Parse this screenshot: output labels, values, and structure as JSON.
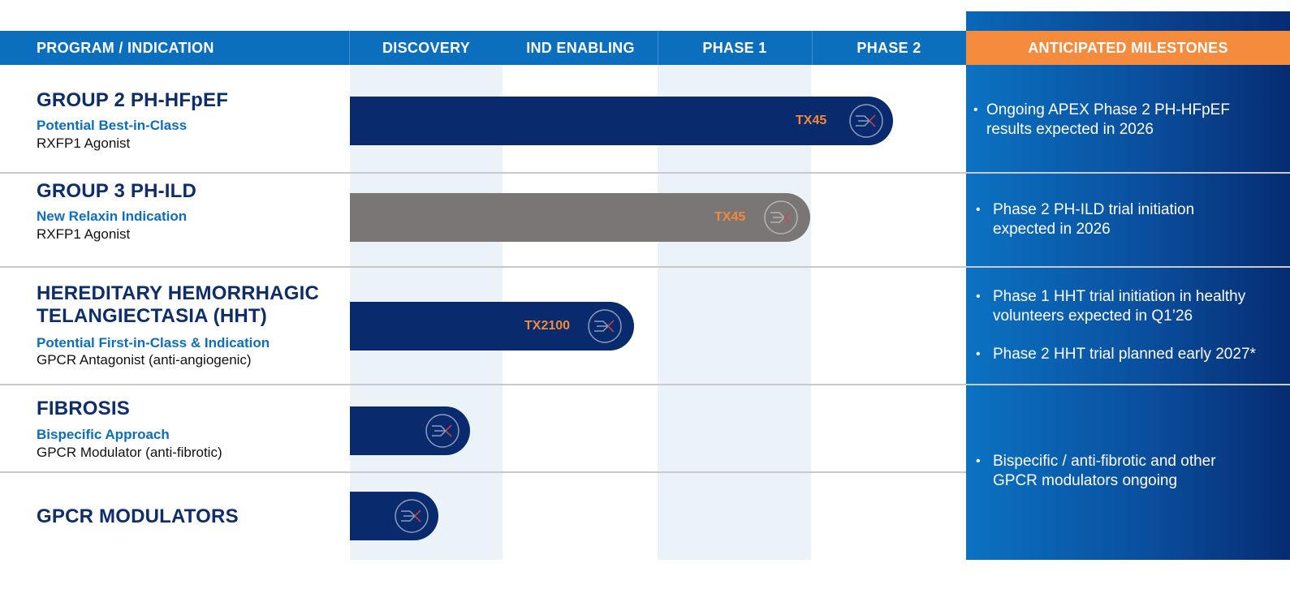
{
  "header": {
    "program": "PROGRAM / INDICATION",
    "discovery": "DISCOVERY",
    "ind": "IND ENABLING",
    "phase1": "PHASE 1",
    "phase2": "PHASE 2",
    "milestones": "ANTICIPATED MILESTONES"
  },
  "colors": {
    "header_blue": "#0b6fbd",
    "navy": "#0a2a6e",
    "orange": "#f58b3c",
    "gray_bar": "#7a7675",
    "shade": "#ebf3f8"
  },
  "programs": [
    {
      "title": "GROUP 2 PH-HFpEF",
      "sub": "Potential Best-in-Class",
      "mech": "RXFP1 Agonist",
      "bar_label": "TX45",
      "bar_style": "navy",
      "progress_phase": "Phase 2"
    },
    {
      "title": "GROUP 3 PH-ILD",
      "sub": "New Relaxin Indication",
      "mech": "RXFP1 Agonist",
      "bar_label": "TX45",
      "bar_style": "gray",
      "progress_phase": "Phase 1"
    },
    {
      "title_line1": "HEREDITARY HEMORRHAGIC",
      "title_line2": "TELANGIECTASIA (HHT)",
      "sub": "Potential First-in-Class & Indication",
      "mech": "GPCR Antagonist (anti-angiogenic)",
      "bar_label": "TX2100",
      "bar_style": "navy",
      "progress_phase": "IND Enabling"
    },
    {
      "title": "FIBROSIS",
      "sub": "Bispecific Approach",
      "mech": "GPCR Modulator (anti-fibrotic)",
      "bar_label": "",
      "bar_style": "navy",
      "progress_phase": "Discovery"
    },
    {
      "title": "GPCR MODULATORS",
      "bar_label": "",
      "bar_style": "navy",
      "progress_phase": "Discovery"
    }
  ],
  "milestones": [
    {
      "bullet": "•",
      "lines": [
        "Ongoing APEX Phase 2 PH-HFpEF",
        "results expected in 2026"
      ]
    },
    {
      "bullet": "•",
      "lines": [
        "Phase 2 PH-ILD trial initiation",
        "expected in 2026"
      ]
    },
    {
      "bullet": "•",
      "lines": [
        "Phase 1 HHT trial initiation in healthy",
        "volunteers expected in Q1’26"
      ]
    },
    {
      "bullet": "•",
      "lines": [
        "Phase 2 HHT trial planned early 2027*"
      ]
    },
    {
      "bullet": "•",
      "lines": [
        "Bispecific / anti-fibrotic and other",
        "GPCR modulators ongoing"
      ]
    }
  ]
}
